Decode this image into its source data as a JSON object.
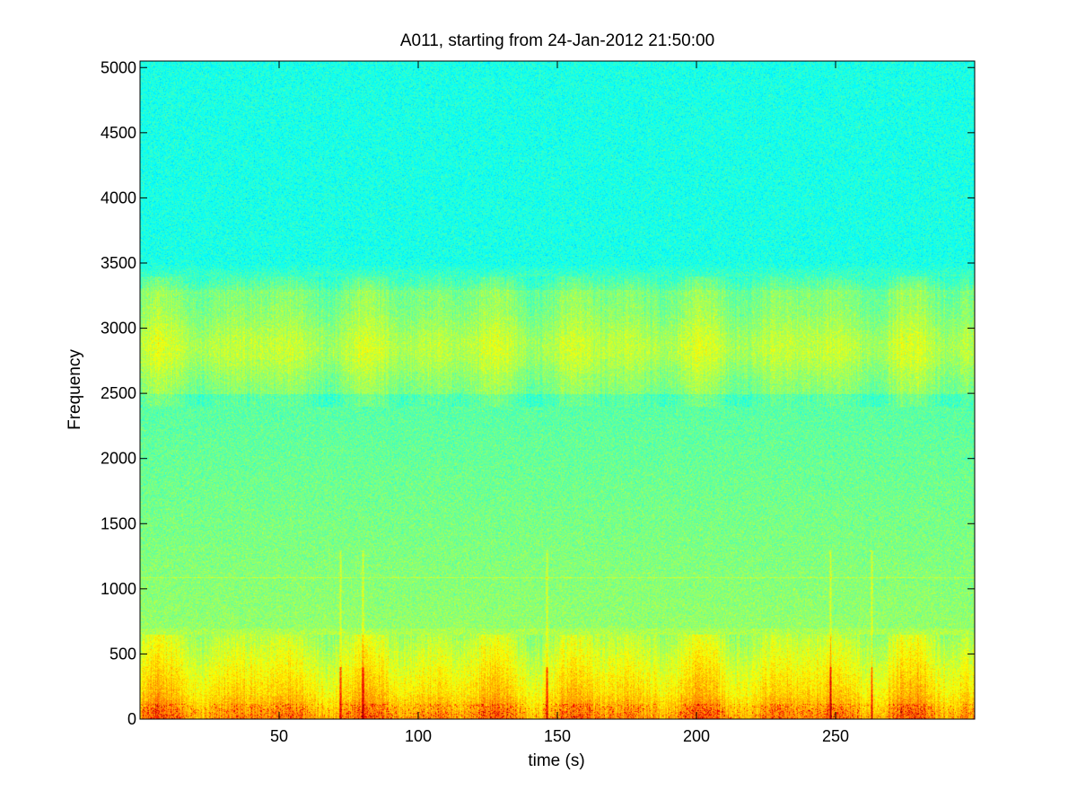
{
  "chart_data": {
    "type": "heatmap",
    "title": "A011, starting from 24-Jan-2012 21:50:00",
    "xlabel": "time (s)",
    "ylabel": "Frequency",
    "xlim": [
      0,
      300
    ],
    "ylim": [
      0,
      5050
    ],
    "xticks": [
      50,
      100,
      150,
      200,
      250
    ],
    "yticks": [
      0,
      500,
      1000,
      1500,
      2000,
      2500,
      3000,
      3500,
      4000,
      4500,
      5000
    ],
    "colormap": "jet",
    "grid": false,
    "features": {
      "high_energy_band_hz": [
        0,
        650
      ],
      "broad_band_hz": [
        2500,
        3300
      ],
      "narrow_line_hz": 1090,
      "transient_times_s": [
        72,
        80,
        146,
        248,
        263
      ]
    }
  },
  "colors": {
    "background": "#ffffff",
    "axes": "#000000"
  }
}
